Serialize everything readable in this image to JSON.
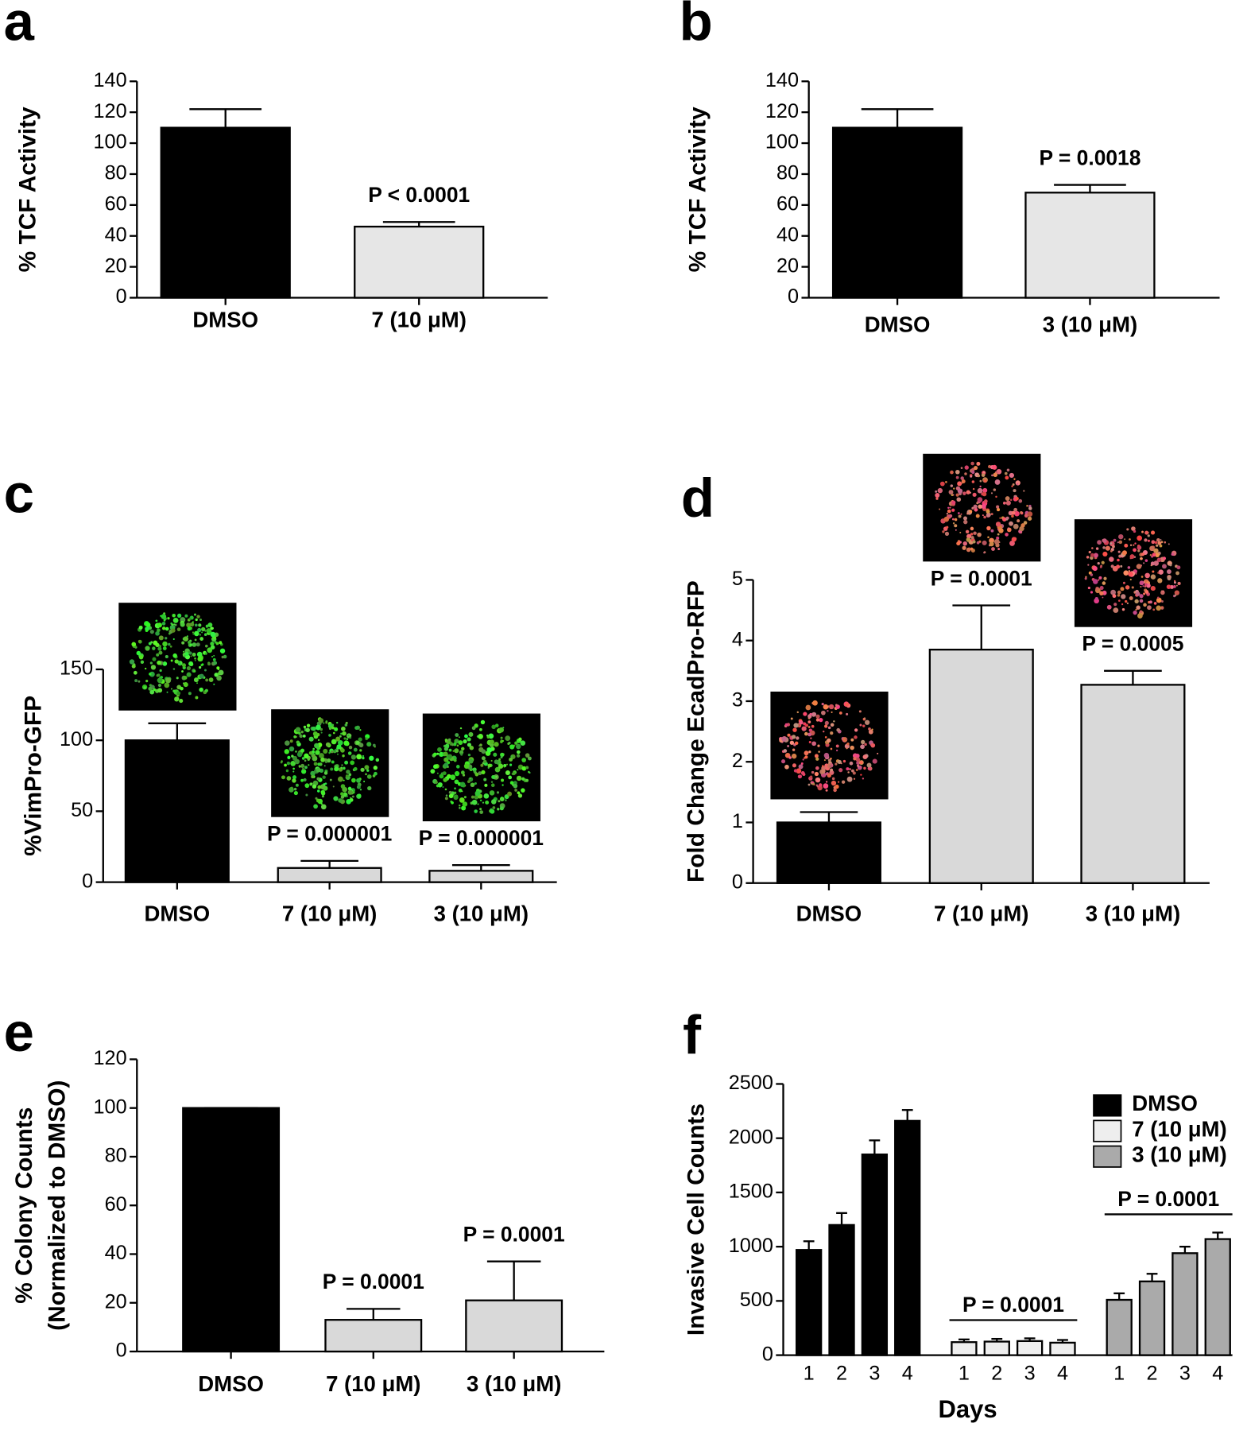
{
  "chart_data": [
    {
      "type": "bar",
      "label": "a",
      "ylabel": "% TCF Activity",
      "categories": [
        "DMSO",
        "7 (10 μM)"
      ],
      "values": [
        110,
        46
      ],
      "errors": [
        12,
        3
      ],
      "colors": [
        "#000000",
        "#e6e6e6"
      ],
      "annotations": [
        null,
        "P < 0.0001"
      ],
      "ylim": [
        0,
        140
      ],
      "yticks": [
        0,
        20,
        40,
        60,
        80,
        100,
        120,
        140
      ]
    },
    {
      "type": "bar",
      "label": "b",
      "ylabel": "% TCF Activity",
      "categories": [
        "DMSO",
        "3 (10 μM)"
      ],
      "values": [
        110,
        68
      ],
      "errors": [
        12,
        5
      ],
      "colors": [
        "#000000",
        "#e6e6e6"
      ],
      "annotations": [
        null,
        "P = 0.0018"
      ],
      "ylim": [
        0,
        140
      ],
      "yticks": [
        0,
        20,
        40,
        60,
        80,
        100,
        120,
        140
      ]
    },
    {
      "type": "bar",
      "label": "c",
      "ylabel": "%VimPro-GFP",
      "categories": [
        "DMSO",
        "7 (10 μM)",
        "3 (10 μM)"
      ],
      "values": [
        100,
        10,
        8
      ],
      "errors": [
        12,
        5,
        4
      ],
      "colors": [
        "#000000",
        "#d9d9d9",
        "#d9d9d9"
      ],
      "annotations": [
        null,
        "P = 0.000001",
        "P = 0.000001"
      ],
      "ylim": [
        0,
        150
      ],
      "yticks": [
        0,
        50,
        100,
        150
      ]
    },
    {
      "type": "bar",
      "label": "d",
      "ylabel": "Fold Change EcadPro-RFP",
      "categories": [
        "DMSO",
        "7 (10 μM)",
        "3 (10 μM)"
      ],
      "values": [
        1.0,
        3.85,
        3.27
      ],
      "errors": [
        0.17,
        0.73,
        0.23
      ],
      "colors": [
        "#000000",
        "#d9d9d9",
        "#d9d9d9"
      ],
      "annotations": [
        null,
        "P = 0.0001",
        "P = 0.0005"
      ],
      "ylim": [
        0,
        5
      ],
      "yticks": [
        0,
        1,
        2,
        3,
        4,
        5
      ]
    },
    {
      "type": "bar",
      "label": "e",
      "ylabel": [
        "% Colony Counts",
        "(Normalized to DMSO)"
      ],
      "categories": [
        "DMSO",
        "7 (10 μM)",
        "3 (10 μM)"
      ],
      "values": [
        100,
        13,
        21
      ],
      "errors": [
        0,
        4.5,
        16
      ],
      "colors": [
        "#000000",
        "#d9d9d9",
        "#d9d9d9"
      ],
      "annotations": [
        null,
        "P = 0.0001",
        "P = 0.0001"
      ],
      "ylim": [
        0,
        120
      ],
      "yticks": [
        0,
        20,
        40,
        60,
        80,
        100,
        120
      ]
    },
    {
      "type": "grouped",
      "label": "f",
      "ylabel": "Invasive Cell Counts",
      "xlabel": "Days",
      "categories": [
        "1",
        "2",
        "3",
        "4"
      ],
      "series": [
        {
          "name": "DMSO",
          "color": "#000000",
          "values": [
            970,
            1200,
            1850,
            2160
          ],
          "errors": [
            80,
            110,
            130,
            100
          ],
          "annotation": null
        },
        {
          "name": "7 (10 μM)",
          "color": "#eeeeee",
          "values": [
            120,
            125,
            130,
            115
          ],
          "errors": [
            25,
            25,
            25,
            25
          ],
          "annotation": "P = 0.0001"
        },
        {
          "name": "3 (10 μM)",
          "color": "#aaaaaa",
          "values": [
            510,
            680,
            940,
            1070
          ],
          "errors": [
            60,
            70,
            60,
            60
          ],
          "annotation": "P = 0.0001"
        }
      ],
      "ylim": [
        0,
        2500
      ],
      "yticks": [
        0,
        500,
        1000,
        1500,
        2000,
        2500
      ],
      "legend": "upper right"
    }
  ]
}
